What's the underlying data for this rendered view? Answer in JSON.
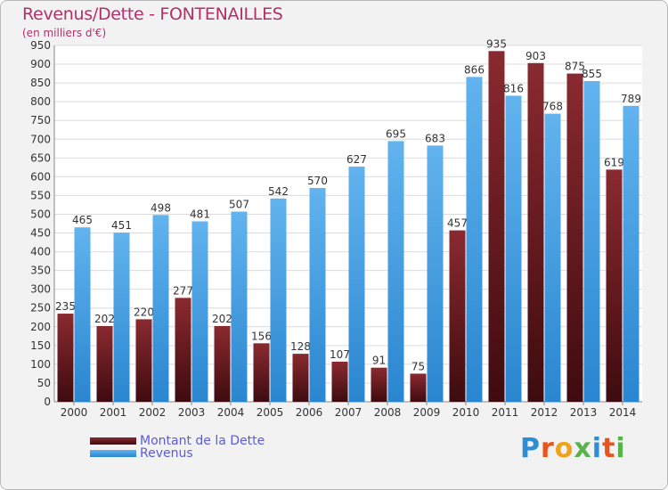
{
  "chart_data": {
    "type": "bar",
    "title": "Revenus/Dette - FONTENAILLES",
    "subtitle": "(en milliers d'€)",
    "categories": [
      "2000",
      "2001",
      "2002",
      "2003",
      "2004",
      "2005",
      "2006",
      "2007",
      "2008",
      "2009",
      "2010",
      "2011",
      "2012",
      "2013",
      "2014"
    ],
    "series": [
      {
        "name": "Montant de la Dette",
        "color": "#7a1d24",
        "values": [
          235,
          202,
          220,
          277,
          202,
          156,
          128,
          107,
          91,
          75,
          457,
          935,
          903,
          875,
          619
        ]
      },
      {
        "name": "Revenus",
        "color": "#4aa3e8",
        "values": [
          465,
          451,
          498,
          481,
          507,
          542,
          570,
          627,
          695,
          683,
          866,
          816,
          768,
          855,
          789
        ]
      }
    ],
    "ylim": [
      0,
      950
    ],
    "yticks": [
      0,
      50,
      100,
      150,
      200,
      250,
      300,
      350,
      400,
      450,
      500,
      550,
      600,
      650,
      700,
      750,
      800,
      850,
      900,
      950
    ],
    "grid": true,
    "legend_position": "bottom-left"
  },
  "logo": {
    "letters": [
      {
        "ch": "P",
        "color": "#2c8fd6"
      },
      {
        "ch": "r",
        "color": "#e8541e"
      },
      {
        "ch": "o",
        "color": "#f0a21a"
      },
      {
        "ch": "x",
        "color": "#59b34a"
      },
      {
        "ch": "i",
        "color": "#2c8fd6"
      },
      {
        "ch": "t",
        "color": "#e8541e"
      },
      {
        "ch": "i",
        "color": "#59b34a"
      }
    ]
  }
}
